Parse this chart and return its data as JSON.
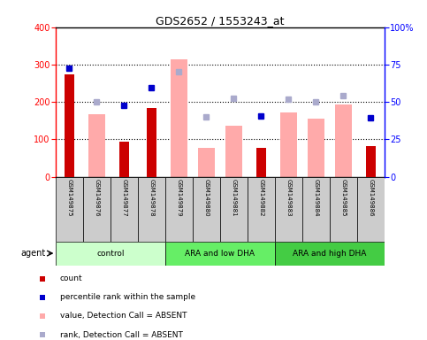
{
  "title": "GDS2652 / 1553243_at",
  "samples": [
    "GSM149875",
    "GSM149876",
    "GSM149877",
    "GSM149878",
    "GSM149879",
    "GSM149880",
    "GSM149881",
    "GSM149882",
    "GSM149883",
    "GSM149884",
    "GSM149885",
    "GSM149886"
  ],
  "groups": [
    {
      "label": "control",
      "color": "#ccffcc",
      "start": 0,
      "end": 4
    },
    {
      "label": "ARA and low DHA",
      "color": "#66ee66",
      "start": 4,
      "end": 8
    },
    {
      "label": "ARA and high DHA",
      "color": "#44cc44",
      "start": 8,
      "end": 12
    }
  ],
  "count_bars": [
    275,
    0,
    95,
    183,
    0,
    0,
    0,
    77,
    0,
    0,
    0,
    83
  ],
  "absent_value_bars": [
    0,
    167,
    0,
    0,
    315,
    77,
    137,
    0,
    172,
    155,
    193,
    0
  ],
  "percentile_rank_dots": [
    290,
    0,
    190,
    238,
    0,
    0,
    0,
    162,
    0,
    0,
    0,
    157
  ],
  "absent_rank_dots": [
    0,
    201,
    0,
    0,
    281,
    160,
    209,
    0,
    208,
    200,
    216,
    0
  ],
  "ylim_left": [
    0,
    400
  ],
  "ylim_right": [
    0,
    100
  ],
  "left_ticks": [
    0,
    100,
    200,
    300,
    400
  ],
  "right_ticks": [
    0,
    25,
    50,
    75,
    100
  ],
  "right_tick_labels": [
    "0",
    "25",
    "50",
    "75",
    "100%"
  ],
  "count_color": "#cc0000",
  "absent_value_color": "#ffaaaa",
  "percentile_rank_color": "#0000cc",
  "absent_rank_color": "#aaaacc",
  "xticklabel_bg": "#cccccc",
  "agent_label": "agent",
  "legend_items": [
    {
      "color": "#cc0000",
      "label": "count"
    },
    {
      "color": "#0000cc",
      "label": "percentile rank within the sample"
    },
    {
      "color": "#ffaaaa",
      "label": "value, Detection Call = ABSENT"
    },
    {
      "color": "#aaaacc",
      "label": "rank, Detection Call = ABSENT"
    }
  ]
}
